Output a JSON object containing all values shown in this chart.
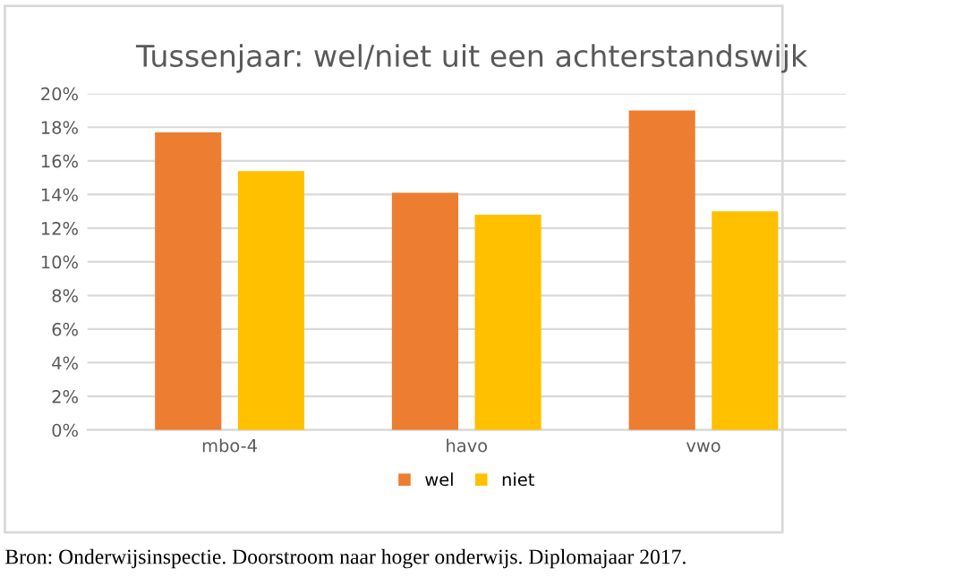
{
  "chart_data": {
    "type": "bar",
    "title": "Tussenjaar: wel/niet uit een achterstandswijk",
    "categories": [
      "mbo-4",
      "havo",
      "vwo"
    ],
    "series": [
      {
        "name": "wel",
        "color": "#ed7d31",
        "values": [
          17.7,
          14.1,
          19.0
        ]
      },
      {
        "name": "niet",
        "color": "#ffc000",
        "values": [
          15.4,
          12.8,
          13.0
        ]
      }
    ],
    "ylim": [
      0,
      20
    ],
    "yticks": [
      {
        "value": 0,
        "label": "0%"
      },
      {
        "value": 2,
        "label": "2%"
      },
      {
        "value": 4,
        "label": "4%"
      },
      {
        "value": 6,
        "label": "6%"
      },
      {
        "value": 8,
        "label": "8%"
      },
      {
        "value": 10,
        "label": "10%"
      },
      {
        "value": 12,
        "label": "12%"
      },
      {
        "value": 14,
        "label": "14%"
      },
      {
        "value": 16,
        "label": "16%"
      },
      {
        "value": 18,
        "label": "18%"
      },
      {
        "value": 20,
        "label": "20%"
      }
    ],
    "grid": "y",
    "legend": "bottom",
    "annotations": [
      "Bron: Onderwijsinspectie. Doorstroom naar hoger onderwijs. Diplomajaar 2017."
    ]
  }
}
